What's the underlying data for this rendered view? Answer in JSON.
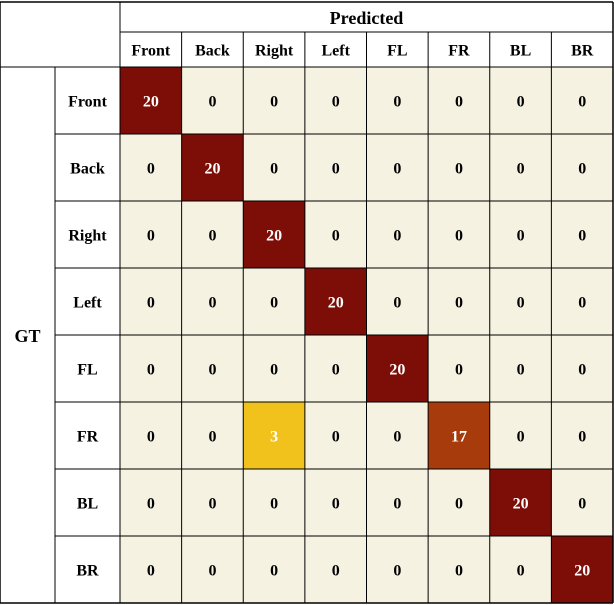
{
  "chart_data": {
    "type": "heatmap",
    "title": "",
    "xlabel": "Predicted",
    "ylabel": "GT",
    "x_categories": [
      "Front",
      "Back",
      "Right",
      "Left",
      "FL",
      "FR",
      "BL",
      "BR"
    ],
    "y_categories": [
      "Front",
      "Back",
      "Right",
      "Left",
      "FL",
      "FR",
      "BL",
      "BR"
    ],
    "values": [
      [
        20,
        0,
        0,
        0,
        0,
        0,
        0,
        0
      ],
      [
        0,
        20,
        0,
        0,
        0,
        0,
        0,
        0
      ],
      [
        0,
        0,
        20,
        0,
        0,
        0,
        0,
        0
      ],
      [
        0,
        0,
        0,
        20,
        0,
        0,
        0,
        0
      ],
      [
        0,
        0,
        0,
        0,
        20,
        0,
        0,
        0
      ],
      [
        0,
        0,
        3,
        0,
        0,
        17,
        0,
        0
      ],
      [
        0,
        0,
        0,
        0,
        0,
        0,
        20,
        0
      ],
      [
        0,
        0,
        0,
        0,
        0,
        0,
        0,
        20
      ]
    ],
    "value_range": [
      0,
      20
    ],
    "colors": {
      "zero": "#f5f2e1",
      "low": "#f1c21b",
      "mid": "#a83b0c",
      "high": "#7d0d07"
    }
  }
}
